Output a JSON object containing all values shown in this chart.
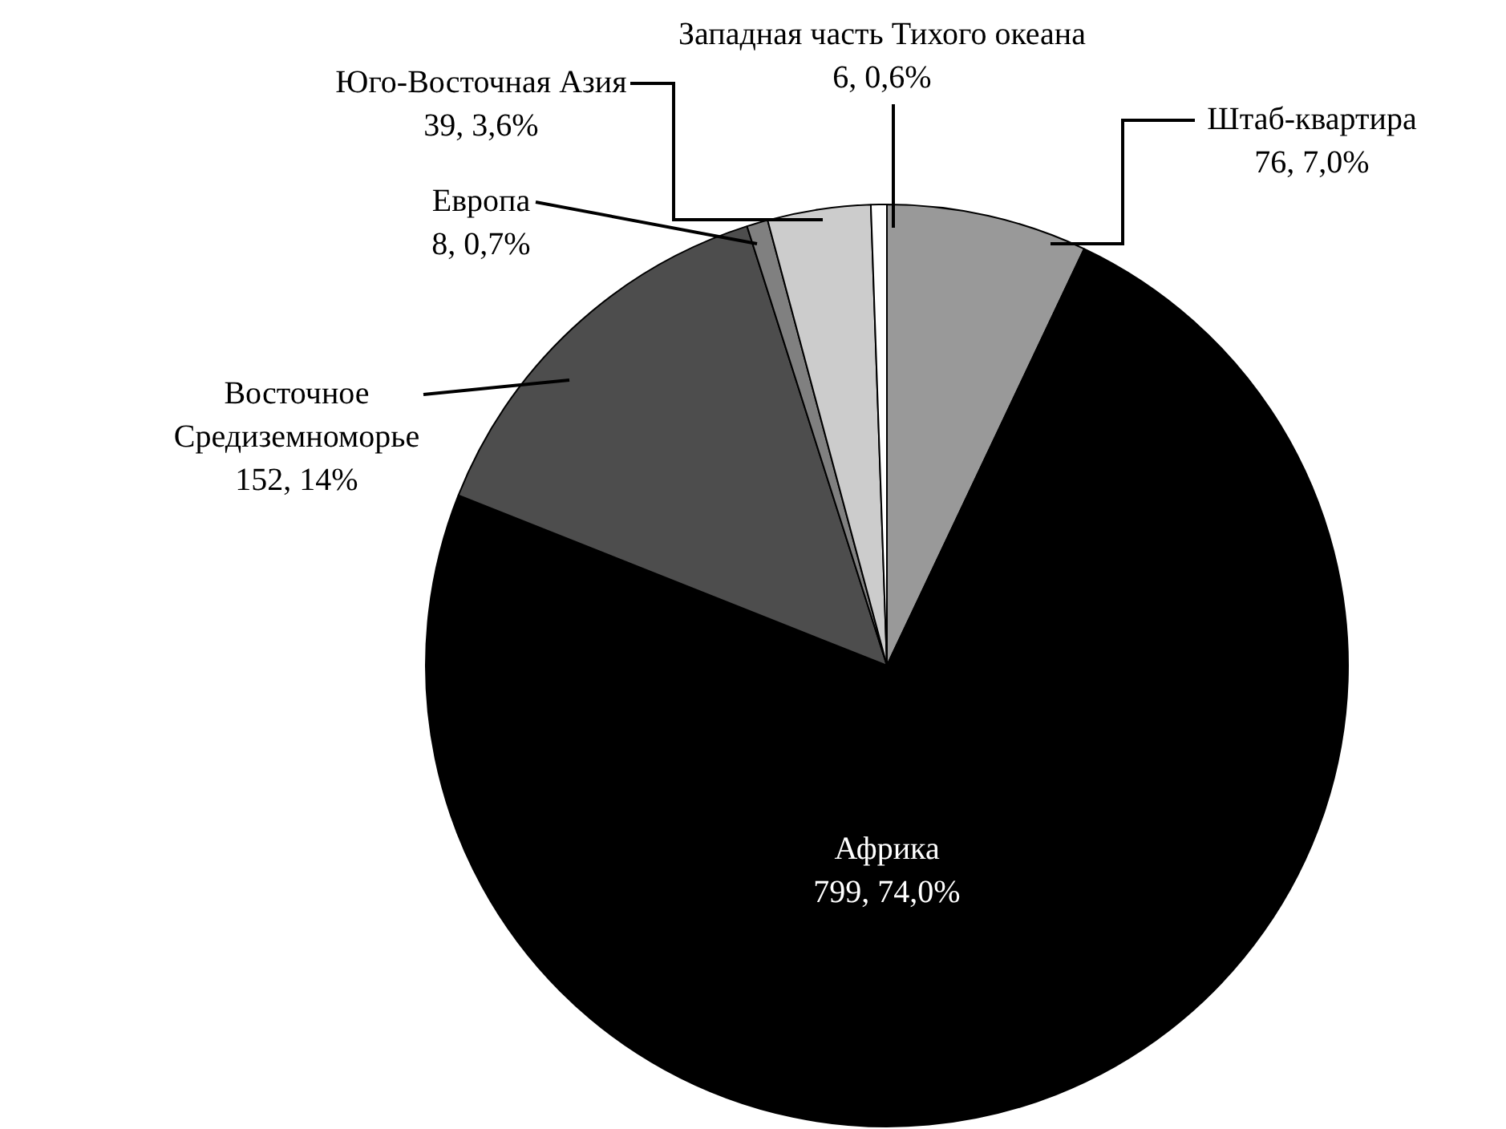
{
  "chart_data": {
    "type": "pie",
    "categories": [
      "Штаб-квартира",
      "Африка",
      "Восточное Средиземноморье",
      "Европа",
      "Юго-Восточная Азия",
      "Западная часть Тихого океана"
    ],
    "values": [
      76,
      799,
      152,
      8,
      39,
      6
    ],
    "colors": [
      "#999999",
      "#000000",
      "#4d4d4d",
      "#808080",
      "#cccccc",
      "#ffffff"
    ],
    "value_labels": [
      "76, 7,0%",
      "799, 74,0%",
      "152, 14%",
      "8, 0,7%",
      "39, 3,6%",
      "6, 0,6%"
    ],
    "legend": false
  }
}
